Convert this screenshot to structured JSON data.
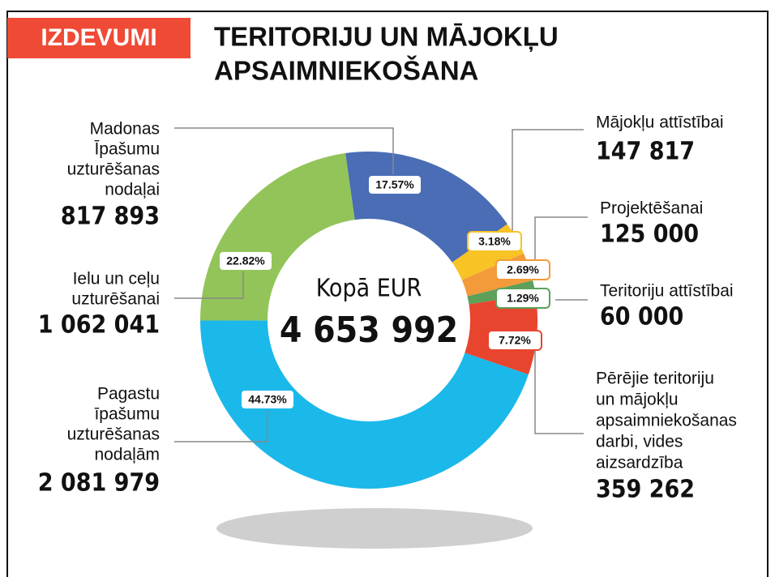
{
  "chart_data": {
    "type": "donut",
    "tag": "IZDEVUMI",
    "title": [
      "TERITORIJU UN MĀJOKĻU",
      "APSAIMNIEKOŠANA"
    ],
    "total_label": "Kopā EUR",
    "total": 4653992,
    "total_value_label": "4 653 992",
    "categories": [
      [
        "Madonas",
        "Īpašumu",
        "uzturēšanas",
        "nodaļai"
      ],
      [
        "Mājokļu attīstībai"
      ],
      [
        "Projektēšanai"
      ],
      [
        "Teritoriju attīstībai"
      ],
      [
        "Pērējie teritoriju",
        "un mājokļu",
        "apsaimniekošanas",
        "darbi, vides",
        "aizsardzība"
      ],
      [
        "Pagastu",
        "īpašumu",
        "uzturēšanas",
        "nodaļām"
      ],
      [
        "Ielu un ceļu",
        "uzturēšanai"
      ]
    ],
    "values": [
      817893,
      147817,
      125000,
      60000,
      359262,
      2081979,
      1062041
    ],
    "value_labels": [
      "817 893",
      "147 817",
      "125 000",
      "60 000",
      "359 262",
      "2 081 979",
      "1 062 041"
    ],
    "percentages": [
      17.57,
      3.18,
      2.69,
      1.29,
      7.72,
      44.73,
      22.82
    ],
    "percentage_labels": [
      "17.57%",
      "3.18%",
      "2.69%",
      "1.29%",
      "7.72%",
      "44.73%",
      "22.82%"
    ],
    "colors": [
      "#4a6db5",
      "#f7c325",
      "#f39a3b",
      "#5ca05a",
      "#e8452f",
      "#1bb8ea",
      "#92c45a"
    ]
  }
}
